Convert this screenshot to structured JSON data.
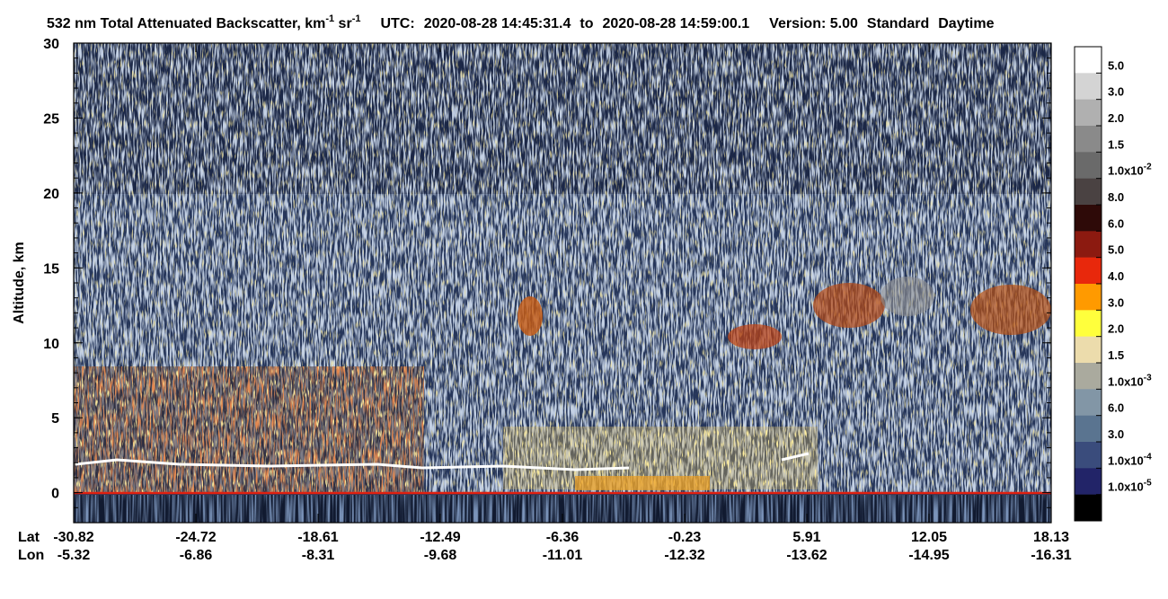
{
  "chart_data": {
    "type": "curtain",
    "title": [
      "532 nm Total Attenuated Backscatter, km",
      "-1",
      " sr",
      "-1"
    ],
    "utc": [
      "UTC:",
      "2020-08-28 14:45:31.4",
      "to",
      "2020-08-28 14:59:00.1"
    ],
    "version": "Version: 5.00",
    "product": "Standard",
    "daytime": "Daytime",
    "ylabel": "Altitude, km",
    "ylim": [
      -2,
      30
    ],
    "yticks": [
      0,
      5,
      10,
      15,
      20,
      25,
      30
    ],
    "x_row_labels": [
      "Lat",
      "Lon"
    ],
    "lat": [
      -30.82,
      -24.72,
      -18.61,
      -12.49,
      -6.36,
      -0.23,
      5.91,
      12.05,
      18.13
    ],
    "lon": [
      -5.32,
      -6.86,
      -8.31,
      -9.68,
      -11.01,
      -12.32,
      -13.62,
      -14.95,
      -16.31
    ],
    "colorbar": {
      "colors": [
        "#ffffff",
        "#d4d4d4",
        "#b0b0b0",
        "#8a8a8a",
        "#6a6a6a",
        "#4a4242",
        "#2e0a08",
        "#8c1a10",
        "#e8280c",
        "#ff9a00",
        "#ffff3c",
        "#ecdcac",
        "#aaaa9e",
        "#8296a6",
        "#5a7490",
        "#3a4c7c",
        "#222468",
        "#000000"
      ],
      "labels": [
        "5.0",
        "3.0",
        "2.0",
        "1.5",
        {
          "base": "1.0x10",
          "exp": "-2"
        },
        "8.0",
        "6.0",
        "5.0",
        "4.0",
        "3.0",
        "2.0",
        "1.5",
        {
          "base": "1.0x10",
          "exp": "-3"
        },
        "6.0",
        "3.0",
        {
          "base": "1.0x10",
          "exp": "-4"
        },
        {
          "base": "1.0x10",
          "exp": "-5"
        }
      ]
    }
  }
}
